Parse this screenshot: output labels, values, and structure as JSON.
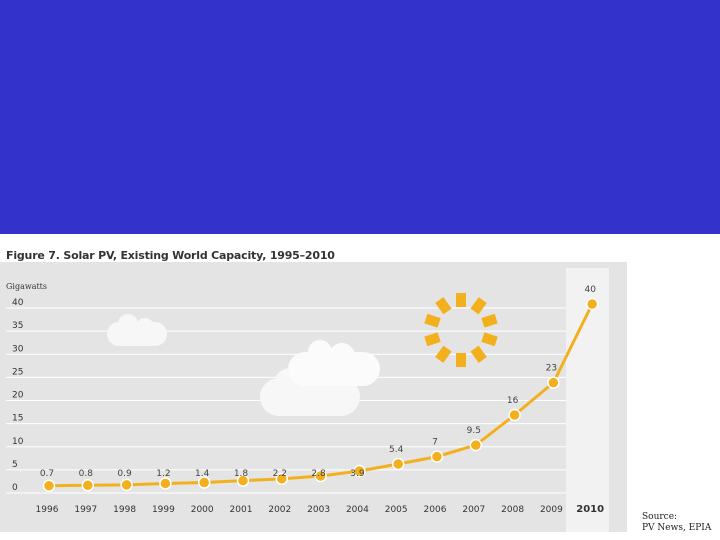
{
  "chart_data": {
    "type": "line",
    "title": "Figure 7. Solar PV, Existing World Capacity, 1995–2010",
    "ylabel": "Gigawatts",
    "xlabel": "",
    "ylim": [
      0,
      40
    ],
    "yticks": [
      0,
      5,
      10,
      15,
      20,
      25,
      30,
      35,
      40
    ],
    "categories": [
      "1996",
      "1997",
      "1998",
      "1999",
      "2000",
      "2001",
      "2002",
      "2003",
      "2004",
      "2005",
      "2006",
      "2007",
      "2008",
      "2009",
      "2010"
    ],
    "values": [
      0.7,
      0.8,
      0.9,
      1.2,
      1.4,
      1.8,
      2.2,
      2.8,
      3.9,
      5.4,
      7,
      9.5,
      16,
      23,
      40
    ],
    "value_labels": [
      "0.7",
      "0.8",
      "0.9",
      "1.2",
      "1.4",
      "1.8",
      "2.2",
      "2.8",
      "3.9",
      "5.4",
      "7",
      "9.5",
      "16",
      "23",
      "40"
    ],
    "highlight_category": "2010",
    "line_color": "#f2b01e",
    "background_color": "#e4e4e4",
    "highlight_color": "#f2f2f2"
  },
  "source": {
    "line1": "Source:",
    "line2": "PV News, EPIA"
  },
  "colors": {
    "banner": "#3333cc"
  }
}
